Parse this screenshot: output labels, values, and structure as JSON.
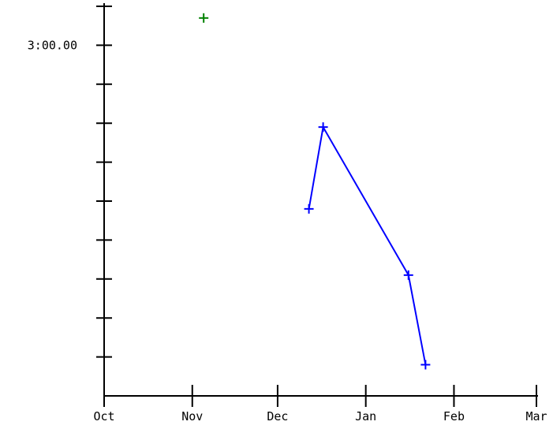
{
  "chart_data": {
    "type": "line",
    "title": "",
    "xlabel": "",
    "ylabel": "",
    "x_ticks": [
      "Oct",
      "Nov",
      "Dec",
      "Jan",
      "Feb",
      "Mar"
    ],
    "y_tick_labels": [
      {
        "value": 3.0,
        "label": "3:00.00"
      }
    ],
    "x_range": [
      "2011-10-01",
      "2012-03-01"
    ],
    "y_range": [
      2.1,
      3.1
    ],
    "grid": false,
    "legend": "none",
    "series": [
      {
        "color": "#008000",
        "style": "points",
        "points": [
          {
            "x": "2011-11-05",
            "y": 3.07
          }
        ]
      },
      {
        "color": "#0000ff",
        "style": "line+points",
        "points": [
          {
            "x": "2011-12-12",
            "y": 2.58
          },
          {
            "x": "2011-12-17",
            "y": 2.79
          },
          {
            "x": "2012-01-16",
            "y": 2.41
          },
          {
            "x": "2012-01-22",
            "y": 2.18
          }
        ]
      }
    ]
  }
}
